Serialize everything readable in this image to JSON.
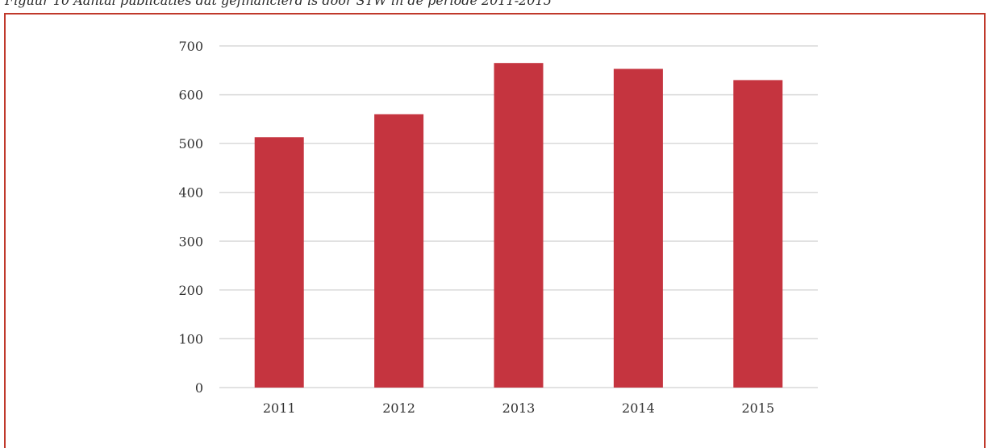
{
  "caption": "Figuur 10 Aantal publicaties dat gefinancierd is door STW in de periode 2011-2015",
  "colors": {
    "bar": "#c5343f",
    "frame": "#c0392b",
    "grid": "#d9d9d9"
  },
  "chart_data": {
    "type": "bar",
    "title": "",
    "xlabel": "",
    "ylabel": "",
    "categories": [
      "2011",
      "2012",
      "2013",
      "2014",
      "2015"
    ],
    "values": [
      513,
      560,
      665,
      653,
      630
    ],
    "ylim": [
      0,
      700
    ],
    "yticks": [
      0,
      100,
      200,
      300,
      400,
      500,
      600,
      700
    ],
    "grid": true,
    "legend": "none"
  }
}
